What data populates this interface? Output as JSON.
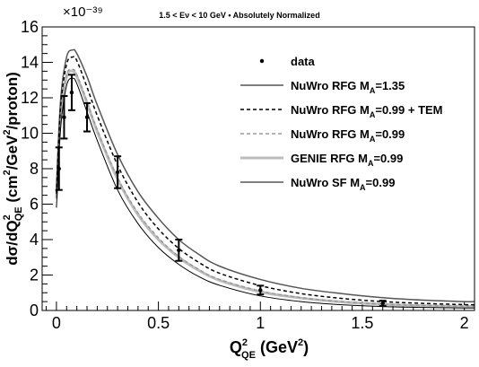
{
  "chart_data": {
    "type": "line",
    "title": "1.5 < Eν < 10 GeV • Absolutely Normalized",
    "exponent_label": "×10⁻³⁹",
    "xlabel": {
      "main": "Q",
      "sup": "2",
      "sub": "QE",
      "unit_pre": " (GeV",
      "unit_sup": "2",
      "unit_post": ")"
    },
    "ylabel": {
      "p1": "dσ/dQ",
      "s1": "2",
      "b1": "QE",
      "p2": " (cm",
      "s2": "2",
      "p3": "/GeV",
      "s3": "2",
      "p4": "/proton)"
    },
    "xlim": [
      -0.07,
      2.05
    ],
    "ylim": [
      0,
      16
    ],
    "x_ticks": [
      0,
      0.5,
      1,
      1.5,
      2
    ],
    "x_tick_labels": [
      "0",
      "0.5",
      "1",
      "1.5",
      "2"
    ],
    "y_ticks": [
      0,
      2,
      4,
      6,
      8,
      10,
      12,
      14,
      16
    ],
    "y_tick_labels": [
      "0",
      "2",
      "4",
      "6",
      "8",
      "10",
      "12",
      "14",
      "16"
    ],
    "grid": false,
    "legend_position": "top-right",
    "data_points": {
      "name": "data",
      "x": [
        0.0125,
        0.0375,
        0.075,
        0.15,
        0.3,
        0.6,
        1.0,
        1.6
      ],
      "y": [
        8.0,
        10.9,
        12.3,
        10.9,
        7.8,
        3.4,
        1.15,
        0.4
      ],
      "yerr": [
        1.2,
        1.2,
        1.0,
        0.8,
        0.9,
        0.6,
        0.25,
        0.15
      ]
    },
    "series": [
      {
        "name": "NuWro RFG M_A=1.35",
        "legend": {
          "pre": "NuWro RFG M",
          "sub": "A",
          "post": "=1.35"
        },
        "color": "#555555",
        "dash": "",
        "width": 1.5,
        "x": [
          0,
          0.02,
          0.05,
          0.08,
          0.1,
          0.15,
          0.2,
          0.3,
          0.4,
          0.5,
          0.6,
          0.7,
          0.8,
          1.0,
          1.2,
          1.4,
          1.6,
          1.8,
          2.0,
          2.05
        ],
        "y": [
          6.8,
          11.8,
          14.3,
          14.7,
          14.5,
          13.2,
          11.6,
          8.8,
          6.7,
          5.2,
          4.0,
          3.15,
          2.5,
          1.75,
          1.25,
          0.95,
          0.72,
          0.58,
          0.5,
          0.5
        ]
      },
      {
        "name": "NuWro RFG M_A=0.99 + TEM",
        "legend": {
          "pre": "NuWro RFG M",
          "sub": "A",
          "post": "=0.99 + TEM"
        },
        "color": "#000000",
        "dash": "4,3",
        "width": 1.5,
        "x": [
          0,
          0.02,
          0.05,
          0.08,
          0.1,
          0.15,
          0.2,
          0.3,
          0.4,
          0.5,
          0.6,
          0.7,
          0.8,
          1.0,
          1.2,
          1.4,
          1.6,
          1.8,
          2.0,
          2.05
        ],
        "y": [
          6.6,
          11.4,
          13.9,
          14.3,
          14.1,
          12.6,
          11.0,
          8.2,
          6.1,
          4.6,
          3.5,
          2.7,
          2.1,
          1.4,
          0.95,
          0.68,
          0.5,
          0.4,
          0.33,
          0.32
        ]
      },
      {
        "name": "NuWro RFG M_A=0.99",
        "legend": {
          "pre": "NuWro RFG M",
          "sub": "A",
          "post": "=0.99"
        },
        "color": "#9a9a9a",
        "dash": "4,3",
        "width": 1.5,
        "x": [
          0,
          0.02,
          0.05,
          0.08,
          0.1,
          0.15,
          0.2,
          0.3,
          0.4,
          0.5,
          0.6,
          0.7,
          0.8,
          1.0,
          1.2,
          1.4,
          1.6,
          1.8,
          2.0,
          2.05
        ],
        "y": [
          6.4,
          11.0,
          13.3,
          13.6,
          13.3,
          11.8,
          10.2,
          7.5,
          5.5,
          4.1,
          3.05,
          2.3,
          1.75,
          1.1,
          0.72,
          0.5,
          0.36,
          0.28,
          0.24,
          0.23
        ]
      },
      {
        "name": "GENIE RFG M_A=0.99",
        "legend": {
          "pre": "GENIE RFG M",
          "sub": "A",
          "post": "=0.99"
        },
        "color": "#bdbdbd",
        "dash": "",
        "width": 3,
        "x": [
          0,
          0.02,
          0.05,
          0.08,
          0.1,
          0.15,
          0.2,
          0.3,
          0.4,
          0.5,
          0.6,
          0.7,
          0.8,
          1.0,
          1.2,
          1.4,
          1.6,
          1.8,
          2.0,
          2.05
        ],
        "y": [
          6.3,
          10.9,
          13.2,
          13.5,
          13.2,
          11.7,
          10.1,
          7.4,
          5.4,
          4.0,
          3.0,
          2.25,
          1.7,
          1.05,
          0.7,
          0.48,
          0.35,
          0.27,
          0.23,
          0.22
        ]
      },
      {
        "name": "NuWro SF M_A=0.99",
        "legend": {
          "pre": "NuWro SF M",
          "sub": "A",
          "post": "=0.99"
        },
        "color": "#000000",
        "dash": "",
        "width": 1,
        "x": [
          0,
          0.02,
          0.05,
          0.08,
          0.1,
          0.15,
          0.2,
          0.3,
          0.4,
          0.5,
          0.6,
          0.7,
          0.8,
          1.0,
          1.2,
          1.4,
          1.6,
          1.8,
          2.0,
          2.05
        ],
        "y": [
          5.8,
          10.2,
          12.7,
          13.1,
          12.8,
          11.2,
          9.6,
          6.8,
          4.9,
          3.55,
          2.6,
          1.9,
          1.42,
          0.82,
          0.5,
          0.32,
          0.22,
          0.17,
          0.14,
          0.14
        ]
      }
    ]
  }
}
